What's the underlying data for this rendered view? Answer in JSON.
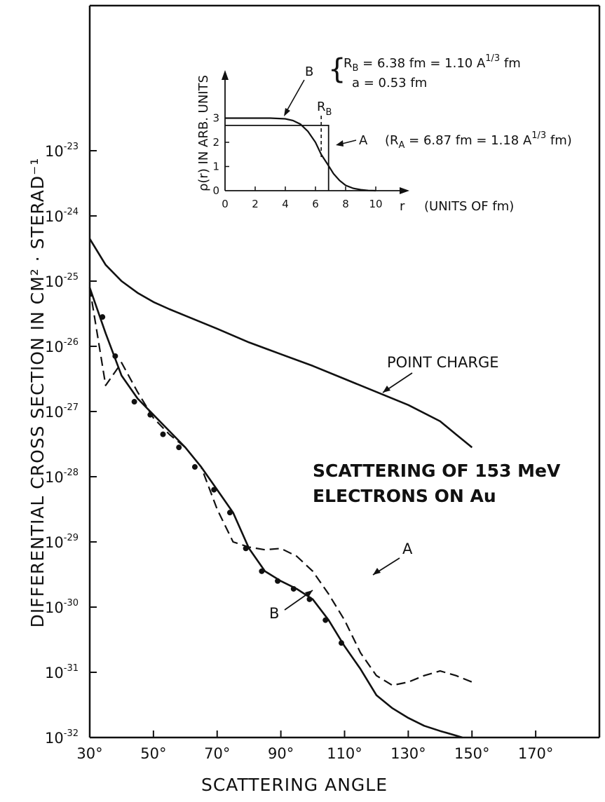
{
  "chart_data": {
    "type": "line",
    "title": "SCATTERING OF 153 MeV ELECTRONS ON Au",
    "title_lines": [
      "SCATTERING OF 153 MeV",
      "ELECTRONS ON Au"
    ],
    "xlabel": "SCATTERING ANGLE",
    "ylabel": "DIFFERENTIAL CROSS SECTION IN CM² · STERAD⁻¹",
    "xlim": [
      30,
      190
    ],
    "ylim_log10": [
      -32,
      -20
    ],
    "y_scale": "log",
    "x_ticks": [
      {
        "value": 30,
        "label": "30°"
      },
      {
        "value": 50,
        "label": "50°"
      },
      {
        "value": 70,
        "label": "70°"
      },
      {
        "value": 90,
        "label": "90°"
      },
      {
        "value": 110,
        "label": "110°"
      },
      {
        "value": 130,
        "label": "130°"
      },
      {
        "value": 150,
        "label": "150°"
      },
      {
        "value": 170,
        "label": "170°"
      }
    ],
    "y_ticks": [
      {
        "exp": -23,
        "base": "10",
        "sup": "-23"
      },
      {
        "exp": -24,
        "base": "10",
        "sup": "-24"
      },
      {
        "exp": -25,
        "base": "10",
        "sup": "-25"
      },
      {
        "exp": -26,
        "base": "10",
        "sup": "-26"
      },
      {
        "exp": -27,
        "base": "10",
        "sup": "-27"
      },
      {
        "exp": -28,
        "base": "10",
        "sup": "-28"
      },
      {
        "exp": -29,
        "base": "10",
        "sup": "-29"
      },
      {
        "exp": -30,
        "base": "10",
        "sup": "-30"
      },
      {
        "exp": -31,
        "base": "10",
        "sup": "-31"
      },
      {
        "exp": -32,
        "base": "10",
        "sup": "-32"
      }
    ],
    "series": [
      {
        "name": "POINT CHARGE",
        "style": "solid",
        "x": [
          30,
          35,
          40,
          45,
          50,
          55,
          60,
          70,
          80,
          90,
          100,
          110,
          120,
          130,
          140,
          145,
          150
        ],
        "log10_y": [
          -24.35,
          -24.75,
          -25.0,
          -25.18,
          -25.32,
          -25.43,
          -25.53,
          -25.73,
          -25.94,
          -26.12,
          -26.3,
          -26.5,
          -26.7,
          -26.9,
          -27.15,
          -27.35,
          -27.55
        ]
      },
      {
        "name": "A",
        "style": "dashed",
        "x": [
          30,
          35,
          40,
          45,
          50,
          55,
          60,
          65,
          70,
          75,
          80,
          85,
          90,
          95,
          100,
          105,
          110,
          115,
          120,
          125,
          130,
          135,
          140,
          145,
          150
        ],
        "log10_y": [
          -25.1,
          -26.6,
          -26.25,
          -26.7,
          -27.1,
          -27.35,
          -27.55,
          -27.85,
          -28.5,
          -29.0,
          -29.08,
          -29.12,
          -29.1,
          -29.22,
          -29.45,
          -29.8,
          -30.2,
          -30.7,
          -31.05,
          -31.2,
          -31.15,
          -31.05,
          -30.98,
          -31.05,
          -31.15
        ]
      },
      {
        "name": "B",
        "style": "solid",
        "x": [
          30,
          35,
          40,
          45,
          50,
          55,
          60,
          65,
          70,
          75,
          80,
          85,
          90,
          95,
          100,
          105,
          110,
          115,
          120,
          125,
          130,
          135,
          140,
          145,
          147
        ],
        "log10_y": [
          -25.1,
          -25.8,
          -26.45,
          -26.8,
          -27.05,
          -27.3,
          -27.55,
          -27.85,
          -28.2,
          -28.55,
          -29.1,
          -29.45,
          -29.6,
          -29.72,
          -29.88,
          -30.2,
          -30.6,
          -30.95,
          -31.35,
          -31.55,
          -31.7,
          -31.82,
          -31.9,
          -31.97,
          -32.0
        ]
      }
    ],
    "measured_points": {
      "x": [
        34,
        38,
        44,
        49,
        53,
        58,
        63,
        69,
        74,
        79,
        84,
        89,
        94,
        99,
        104,
        109
      ],
      "log10_y": [
        -25.55,
        -26.15,
        -26.85,
        -27.05,
        -27.35,
        -27.55,
        -27.85,
        -28.2,
        -28.55,
        -29.1,
        -29.45,
        -29.6,
        -29.72,
        -29.88,
        -30.2,
        -30.55
      ]
    },
    "annotations": {
      "point_charge": "POINT CHARGE",
      "curve_a": "A",
      "curve_b": "B"
    },
    "inset": {
      "xlabel": "r",
      "xlabel_units": "(UNITS OF fm)",
      "ylabel": "ρ(r) IN ARB. UNITS",
      "xlim": [
        0,
        12
      ],
      "ylim": [
        0,
        4
      ],
      "x_ticks": [
        "0",
        "2",
        "4",
        "6",
        "8",
        "10"
      ],
      "x_tick_values": [
        0,
        2,
        4,
        6,
        8,
        10
      ],
      "y_ticks": [
        "0",
        "1",
        "2",
        "3"
      ],
      "y_tick_values": [
        0,
        1,
        2,
        3
      ],
      "curve_b": {
        "name": "B",
        "r": [
          0,
          1,
          2,
          3,
          4,
          4.5,
          5,
          5.5,
          6,
          6.38,
          6.8,
          7.2,
          7.6,
          8,
          8.5,
          9,
          9.5,
          10
        ],
        "rho": [
          3.0,
          3.0,
          3.0,
          3.0,
          2.97,
          2.9,
          2.75,
          2.45,
          2.0,
          1.5,
          1.1,
          0.7,
          0.42,
          0.22,
          0.1,
          0.04,
          0.01,
          0.0
        ]
      },
      "curve_a": {
        "name": "A",
        "r_edge": 6.87,
        "rho": 2.7
      },
      "rb_marker": 6.38,
      "rb_label": "R",
      "rb_sub": "B",
      "label_b": "B",
      "label_a": "A",
      "b_params": {
        "rb_text_pre": "R",
        "rb_sub": "B",
        "rb_text": " = 6.38 fm = 1.10 A",
        "rb_exp": "1/3",
        "rb_unit": " fm",
        "a_text": "a = 0.53 fm"
      },
      "a_params": {
        "pre": "(R",
        "sub": "A",
        "text": " = 6.87 fm = 1.18 A",
        "exp": "1/3",
        "unit": " fm)"
      }
    }
  }
}
